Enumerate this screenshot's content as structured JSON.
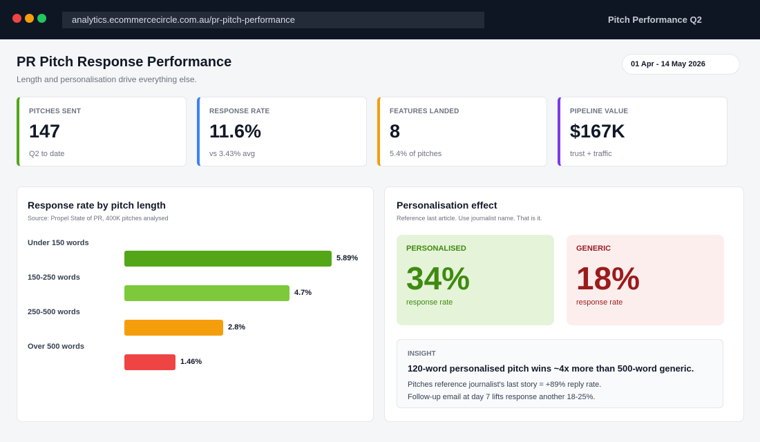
{
  "browser": {
    "url": "analytics.ecommercecircle.com.au/pr-pitch-performance",
    "window_title": "Pitch Performance Q2"
  },
  "header": {
    "title": "PR Pitch Response Performance",
    "subtitle": "Length and personalisation drive everything else.",
    "date_range": "01 Apr - 14 May 2026"
  },
  "kpis": [
    {
      "label": "PITCHES SENT",
      "value": "147",
      "sub": "Q2 to date",
      "color": "#52a617"
    },
    {
      "label": "RESPONSE RATE",
      "value": "11.6%",
      "sub": "vs 3.43% avg",
      "color": "#3b82f6"
    },
    {
      "label": "FEATURES LANDED",
      "value": "8",
      "sub": "5.4% of pitches",
      "color": "#f59e0b"
    },
    {
      "label": "PIPELINE VALUE",
      "value": "$167K",
      "sub": "trust + traffic",
      "color": "#7c3aed"
    }
  ],
  "length_chart": {
    "title": "Response rate by pitch length",
    "source": "Source: Propel State of PR, 400K pitches analysed",
    "chart_data": {
      "type": "bar",
      "categories": [
        "Under 150 words",
        "150-250 words",
        "250-500 words",
        "Over 500 words"
      ],
      "values": [
        5.89,
        4.7,
        2.8,
        1.46
      ],
      "value_labels": [
        "5.89%",
        "4.7%",
        "2.8%",
        "1.46%"
      ],
      "colors": [
        "#52a617",
        "#7dc93b",
        "#f59e0b",
        "#ef4444"
      ],
      "title": "Response rate by pitch length",
      "xlabel": "",
      "ylabel": "",
      "xlim": [
        0,
        5.89
      ]
    }
  },
  "personalisation": {
    "title": "Personalisation effect",
    "sub": "Reference last article. Use journalist name. That is it.",
    "personalised": {
      "label": "PERSONALISED",
      "value": "34%",
      "sub": "response rate",
      "bg": "#e5f3d9",
      "color": "#3f8a10"
    },
    "generic": {
      "label": "GENERIC",
      "value": "18%",
      "sub": "response rate",
      "bg": "#fdeeee",
      "color": "#9b1c1c"
    },
    "insight": {
      "label": "INSIGHT",
      "headline": "120-word personalised pitch wins ~4x more than 500-word generic.",
      "line1": "Pitches reference journalist's last story = +89% reply rate.",
      "line2": "Follow-up email at day 7 lifts response another 18-25%."
    }
  }
}
